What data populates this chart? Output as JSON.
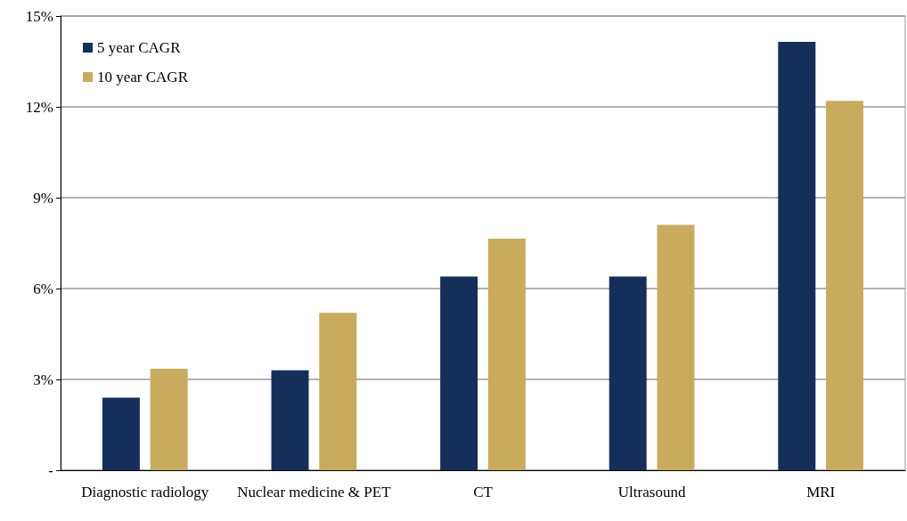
{
  "chart_data": {
    "type": "bar",
    "categories": [
      "Diagnostic radiology",
      "Nuclear medicine & PET",
      "CT",
      "Ultrasound",
      "MRI"
    ],
    "series": [
      {
        "name": "5 year CAGR",
        "color": "#14305a",
        "values": [
          2.4,
          3.3,
          6.4,
          6.4,
          14.15
        ]
      },
      {
        "name": "10 year CAGR",
        "color": "#c8ab5c",
        "values": [
          3.35,
          5.2,
          7.65,
          8.1,
          12.2
        ]
      }
    ],
    "ylim": [
      0,
      15
    ],
    "yticks": [
      {
        "value": 0,
        "label": "-"
      },
      {
        "value": 3,
        "label": "3%"
      },
      {
        "value": 6,
        "label": "6%"
      },
      {
        "value": 9,
        "label": "9%"
      },
      {
        "value": 12,
        "label": "12%"
      },
      {
        "value": 15,
        "label": "15%"
      }
    ],
    "grid": "y",
    "legend": "top left"
  }
}
